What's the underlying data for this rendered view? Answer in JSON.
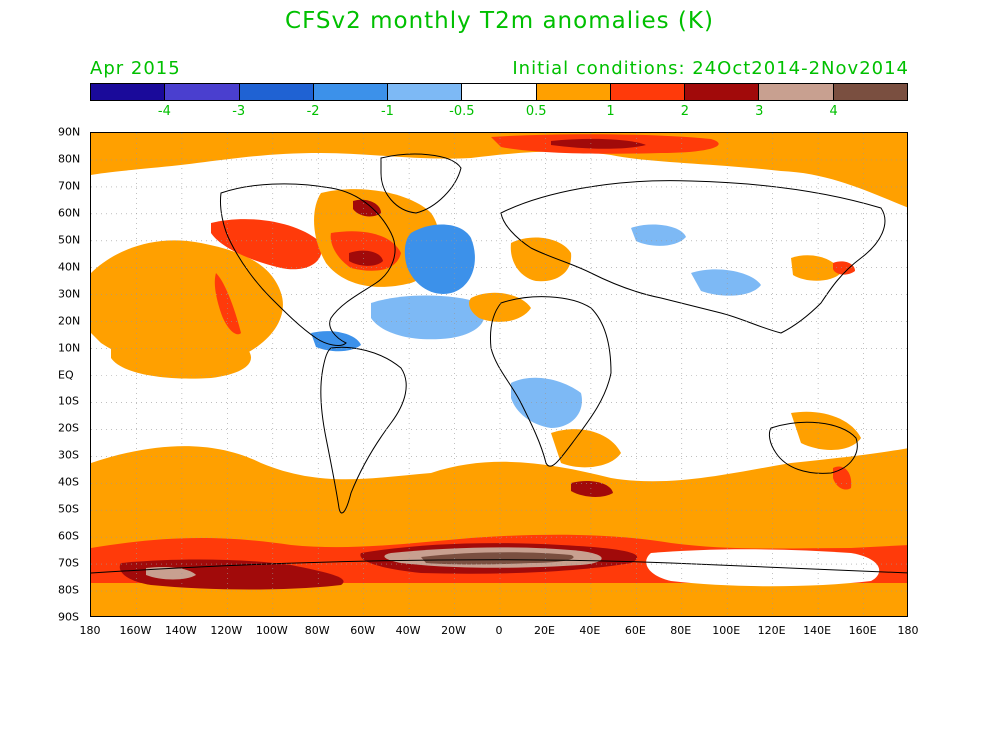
{
  "title": "CFSv2 monthly T2m anomalies (K)",
  "month": "Apr 2015",
  "initial_conditions": "Initial conditions: 24Oct2014-2Nov2014",
  "colorbar": {
    "colors": [
      "#1a0a9a",
      "#4a3fcf",
      "#1f62d3",
      "#3c91ea",
      "#7db9f5",
      "#ffffff",
      "#ffa000",
      "#ff3a0a",
      "#a10a0a",
      "#c8a090",
      "#7a4f40"
    ],
    "labels": [
      "-4",
      "-3",
      "-2",
      "-1",
      "-0.5",
      "0.5",
      "1",
      "2",
      "3",
      "4"
    ]
  },
  "latitude_labels": [
    "90N",
    "80N",
    "70N",
    "60N",
    "50N",
    "40N",
    "30N",
    "20N",
    "10N",
    "EQ",
    "10S",
    "20S",
    "30S",
    "40S",
    "50S",
    "60S",
    "70S",
    "80S",
    "90S"
  ],
  "longitude_labels": [
    "180",
    "160W",
    "140W",
    "120W",
    "100W",
    "80W",
    "60W",
    "40W",
    "20W",
    "0",
    "20E",
    "40E",
    "60E",
    "80E",
    "100E",
    "120E",
    "140E",
    "160E",
    "180"
  ]
}
